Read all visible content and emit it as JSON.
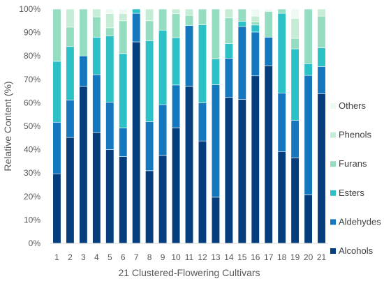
{
  "chart_data": {
    "type": "bar",
    "stacked": true,
    "normalized": true,
    "xlabel": "21 Clustered-Flowering Cultivars",
    "ylabel": "Relative Content (%)",
    "categories": [
      "1",
      "2",
      "3",
      "4",
      "5",
      "6",
      "7",
      "8",
      "9",
      "10",
      "11",
      "12",
      "13",
      "14",
      "15",
      "16",
      "17",
      "18",
      "19",
      "20",
      "21"
    ],
    "ylim": [
      0,
      100
    ],
    "yticks": [
      "0%",
      "10%",
      "20%",
      "30%",
      "40%",
      "50%",
      "60%",
      "70%",
      "80%",
      "90%",
      "100%"
    ],
    "grid": false,
    "legend_position": "right",
    "series": [
      {
        "name": "Alcohols",
        "color": "#063e7d",
        "values": [
          29.7,
          45.2,
          67.0,
          47.3,
          40.0,
          37.0,
          86.0,
          31.0,
          37.5,
          49.3,
          67.0,
          43.7,
          19.7,
          62.3,
          61.5,
          71.5,
          75.8,
          39.2,
          36.5,
          20.7,
          63.8
        ]
      },
      {
        "name": "Aldehydes",
        "color": "#1578bf",
        "values": [
          22.0,
          16.0,
          13.0,
          24.7,
          20.3,
          12.2,
          12.2,
          20.9,
          21.7,
          18.3,
          26.0,
          16.3,
          48.0,
          16.7,
          31.0,
          18.7,
          12.2,
          25.0,
          16.0,
          51.0,
          11.7
        ]
      },
      {
        "name": "Esters",
        "color": "#2cc1c7",
        "values": [
          26.0,
          22.8,
          0.0,
          16.0,
          28.2,
          31.8,
          1.8,
          34.6,
          31.8,
          20.2,
          0.0,
          33.3,
          11.0,
          6.3,
          2.3,
          3.0,
          0.0,
          34.0,
          30.5,
          5.0,
          8.0
        ]
      },
      {
        "name": "Furans",
        "color": "#95ddc0",
        "values": [
          22.3,
          8.3,
          20.0,
          8.7,
          3.5,
          14.0,
          0.0,
          8.5,
          9.0,
          10.2,
          4.3,
          6.7,
          21.3,
          11.0,
          5.2,
          1.3,
          11.0,
          1.8,
          4.5,
          23.3,
          13.5
        ]
      },
      {
        "name": "Phenols",
        "color": "#c5ecd5",
        "values": [
          0.0,
          7.7,
          0.0,
          3.3,
          6.0,
          3.0,
          0.0,
          5.0,
          0.0,
          2.0,
          2.7,
          0.0,
          0.0,
          3.7,
          0.0,
          2.5,
          0.0,
          0.0,
          8.5,
          0.0,
          3.0
        ]
      },
      {
        "name": "Others",
        "color": "#eefaf1",
        "values": [
          0.0,
          0.0,
          0.0,
          0.0,
          2.0,
          2.0,
          0.0,
          0.0,
          0.0,
          0.0,
          0.0,
          0.0,
          0.0,
          0.0,
          0.0,
          3.0,
          1.0,
          0.0,
          4.0,
          0.0,
          0.0
        ]
      }
    ]
  }
}
